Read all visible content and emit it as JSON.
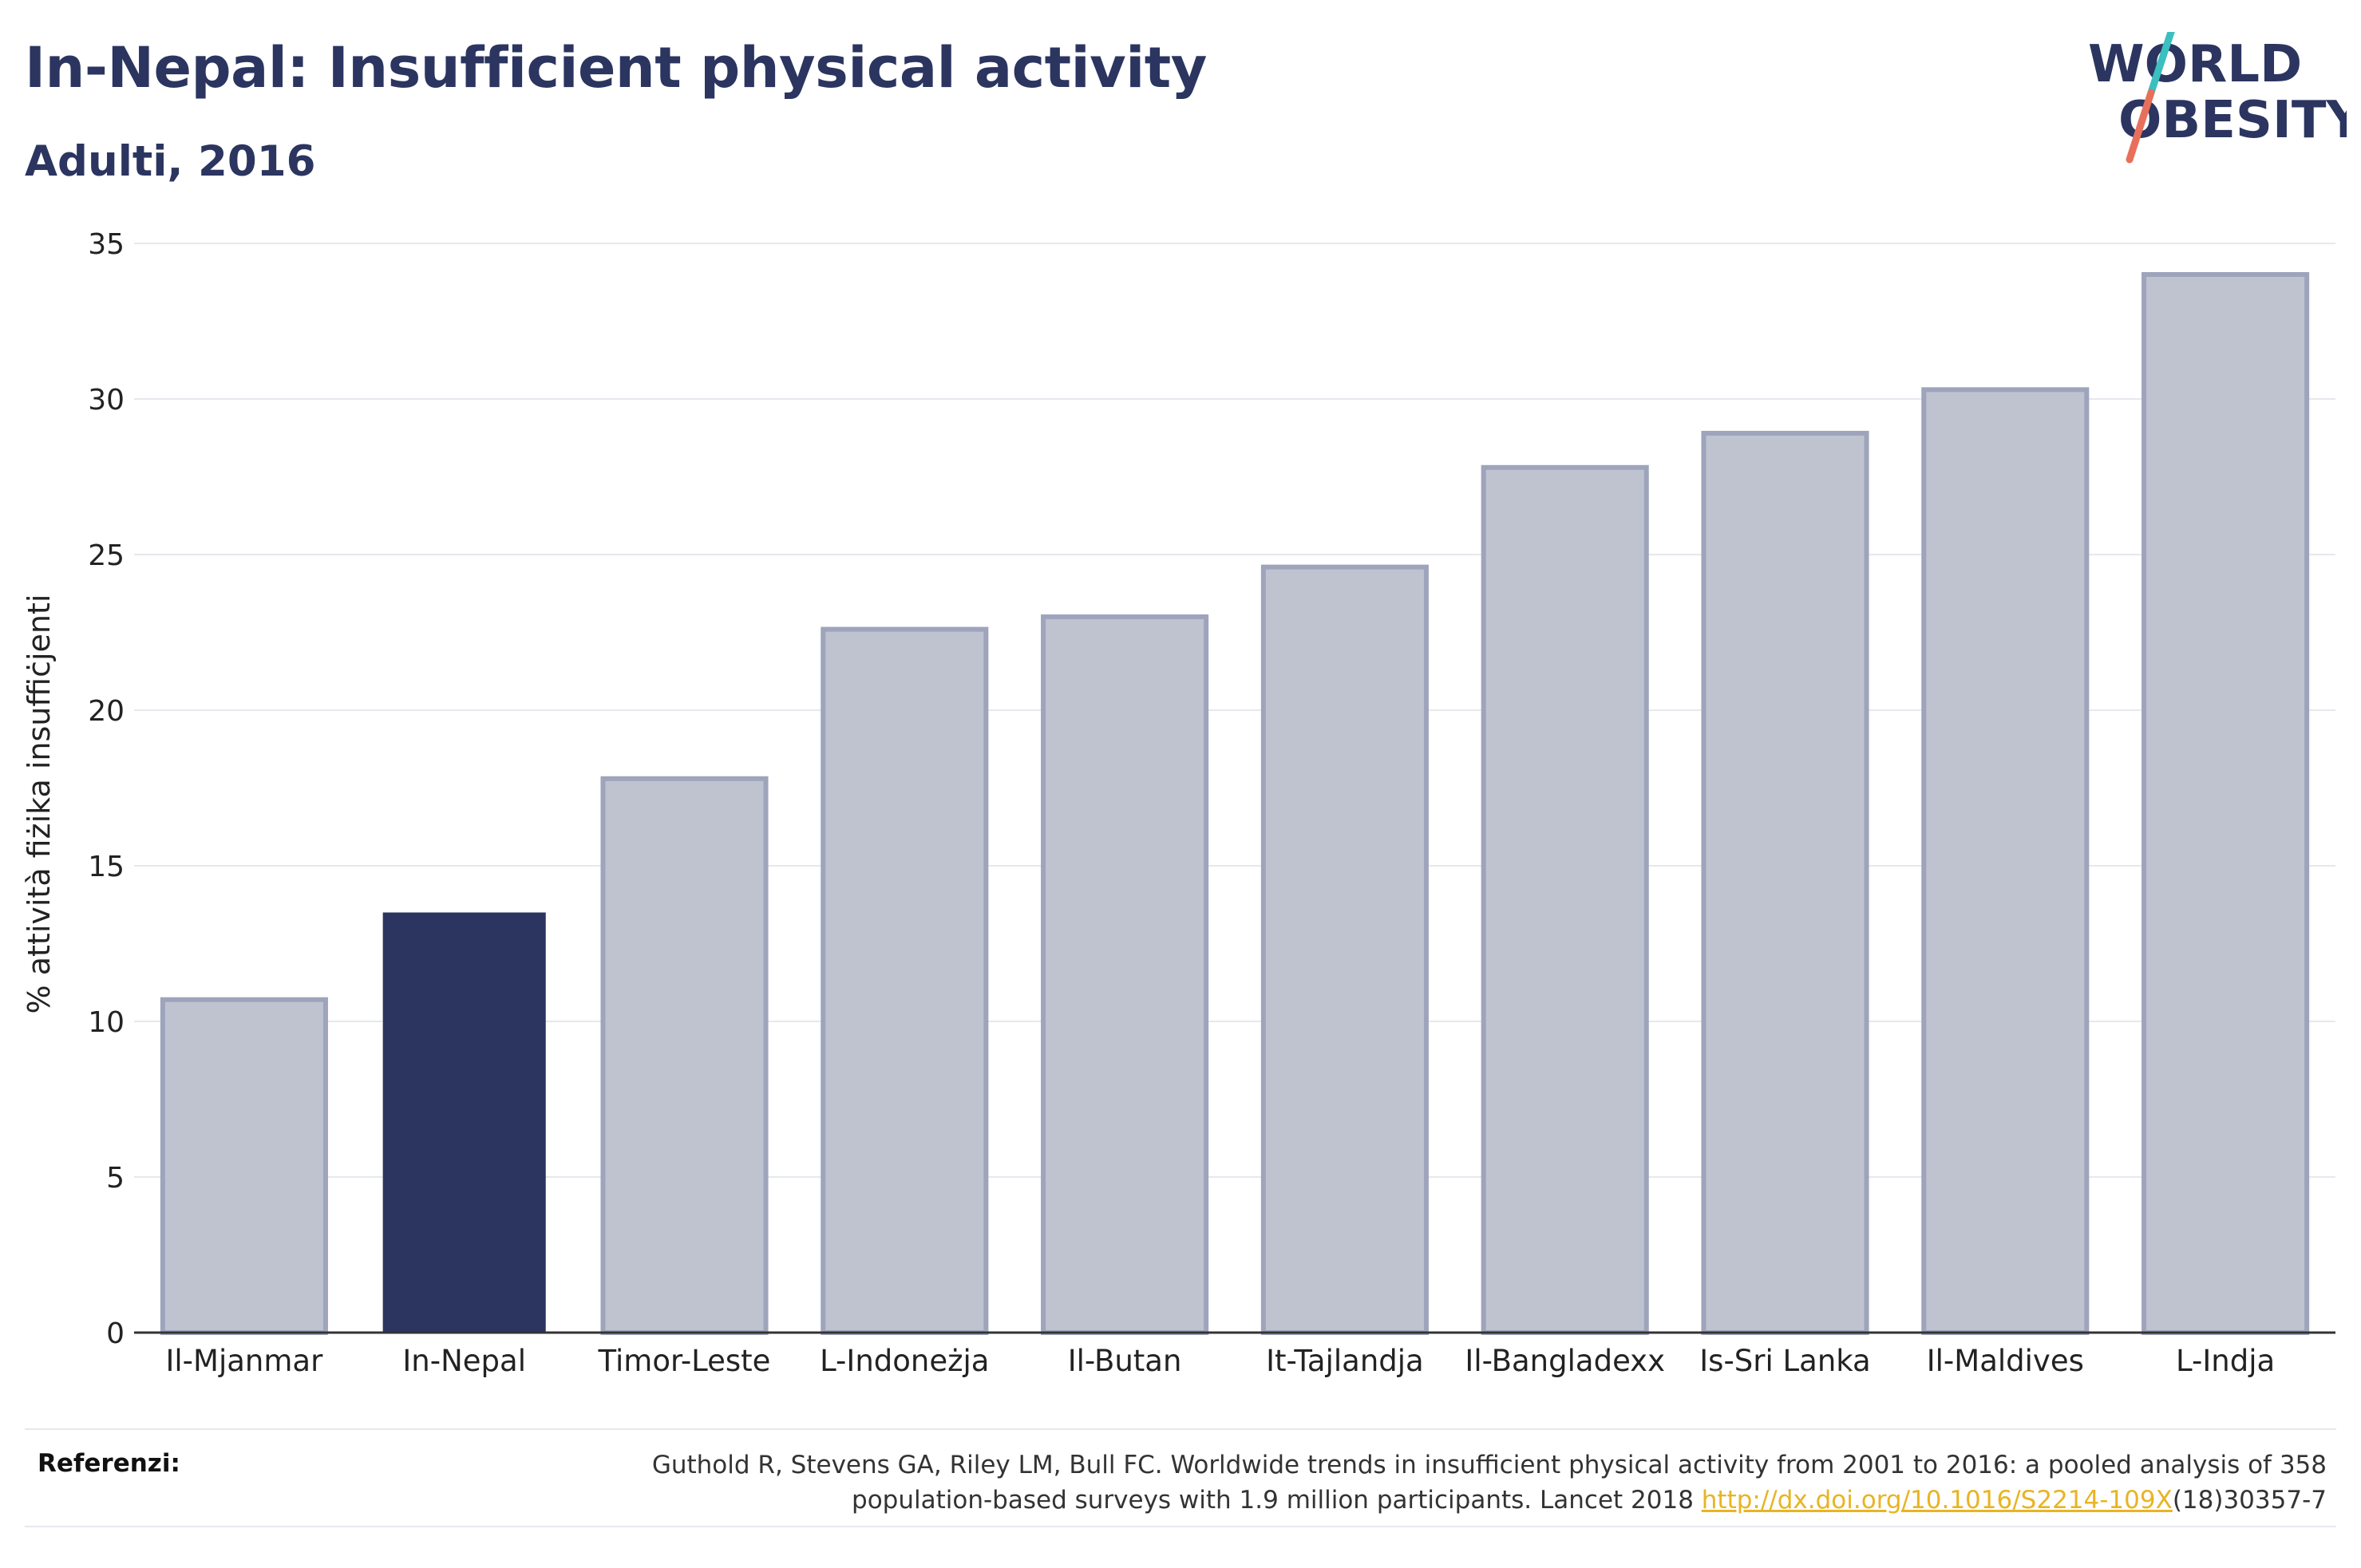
{
  "header": {
    "title": "In-Nepal: Insufficient physical activity",
    "subtitle": "Adulti, 2016"
  },
  "logo": {
    "line1": "WORLD",
    "line2": "OBESITY",
    "slash_top_color": "#3bbfbf",
    "slash_bottom_color": "#e8705a"
  },
  "colors": {
    "highlight": "#2b3560",
    "bar": "#bfc3d0",
    "bar_border": "#9ea4bb",
    "grid": "#e6e8ee",
    "axis": "#333333"
  },
  "chart_data": {
    "type": "bar",
    "title": "In-Nepal: Insufficient physical activity",
    "subtitle": "Adulti, 2016",
    "ylabel": "% attività fiżika insuffiċjenti",
    "xlabel": "",
    "ylim": [
      0,
      35
    ],
    "yticks": [
      0,
      5,
      10,
      15,
      20,
      25,
      30,
      35
    ],
    "grid": true,
    "highlight": "In-Nepal",
    "categories": [
      "Il-Mjanmar",
      "In-Nepal",
      "Timor-Leste",
      "L-Indoneżja",
      "Il-Butan",
      "It-Tajlandja",
      "Il-Bangladexx",
      "Is-Sri Lanka",
      "Il-Maldives",
      "L-Indja"
    ],
    "values": [
      10.7,
      13.5,
      17.8,
      22.6,
      23.0,
      24.6,
      27.8,
      28.9,
      30.3,
      34.0
    ]
  },
  "footer": {
    "label": "Referenzi:",
    "text_line1": "Guthold R, Stevens GA, Riley LM, Bull FC. Worldwide trends in insufficient physical activity from 2001 to 2016: a pooled analysis of 358",
    "text_line2_pre": "population-based surveys with 1.9 million participants. Lancet 2018 ",
    "link": "http://dx.doi.org/10.1016/S2214-109X",
    "text_line2_post": "(18)30357-7"
  }
}
